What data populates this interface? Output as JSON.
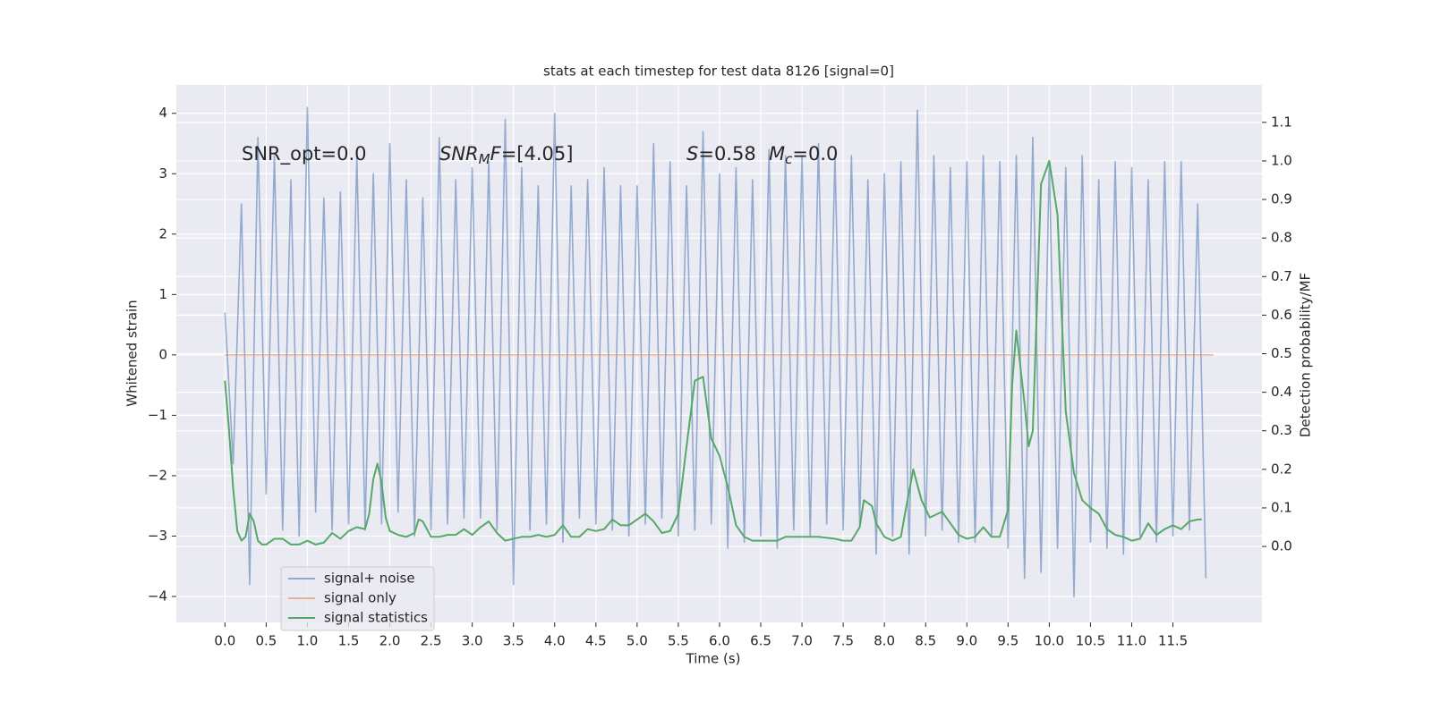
{
  "chart_data": {
    "type": "line",
    "title": "stats at each timestep for test data 8126 [signal=0]",
    "xlabel": "Time (s)",
    "ylabel": "Whitened strain",
    "y2label": "Detection probability/MF",
    "xlim": [
      -0.59,
      12.58
    ],
    "ylim": [
      -4.43,
      4.47
    ],
    "y2lim": [
      -0.197,
      1.197
    ],
    "xticks": [
      {
        "value": 0,
        "label": "0.0"
      },
      {
        "value": 0.5,
        "label": "0.5"
      },
      {
        "value": 1,
        "label": "1.0"
      },
      {
        "value": 1.5,
        "label": "1.5"
      },
      {
        "value": 2,
        "label": "2.0"
      },
      {
        "value": 2.5,
        "label": "2.5"
      },
      {
        "value": 3,
        "label": "3.0"
      },
      {
        "value": 3.5,
        "label": "3.5"
      },
      {
        "value": 4,
        "label": "4.0"
      },
      {
        "value": 4.5,
        "label": "4.5"
      },
      {
        "value": 5,
        "label": "5.0"
      },
      {
        "value": 5.5,
        "label": "5.5"
      },
      {
        "value": 6,
        "label": "6.0"
      },
      {
        "value": 6.5,
        "label": "6.5"
      },
      {
        "value": 7,
        "label": "7.0"
      },
      {
        "value": 7.5,
        "label": "7.5"
      },
      {
        "value": 8,
        "label": "8.0"
      },
      {
        "value": 8.5,
        "label": "8.5"
      },
      {
        "value": 9,
        "label": "9.0"
      },
      {
        "value": 9.5,
        "label": "9.5"
      },
      {
        "value": 10,
        "label": "10.0"
      },
      {
        "value": 10.5,
        "label": "10.5"
      },
      {
        "value": 11,
        "label": "11.0"
      },
      {
        "value": 11.5,
        "label": "11.5"
      }
    ],
    "yticks": [
      {
        "value": -4,
        "label": "−4"
      },
      {
        "value": -3,
        "label": "−3"
      },
      {
        "value": -2,
        "label": "−2"
      },
      {
        "value": -1,
        "label": "−1"
      },
      0,
      1,
      2,
      3,
      4
    ],
    "y2ticks": [
      {
        "value": 0,
        "label": "0.0"
      },
      {
        "value": 0.1,
        "label": "0.1"
      },
      {
        "value": 0.2,
        "label": "0.2"
      },
      {
        "value": 0.3,
        "label": "0.3"
      },
      {
        "value": 0.4,
        "label": "0.4"
      },
      {
        "value": 0.5,
        "label": "0.5"
      },
      {
        "value": 0.6,
        "label": "0.6"
      },
      {
        "value": 0.7,
        "label": "0.7"
      },
      {
        "value": 0.8,
        "label": "0.8"
      },
      {
        "value": 0.9,
        "label": "0.9"
      },
      {
        "value": 1,
        "label": "1.0"
      },
      {
        "value": 1.1,
        "label": "1.1"
      }
    ],
    "grid": true,
    "legend": "lower left",
    "annotations": [
      [
        {
          "text": "SNR_opt=0.0",
          "style": "normal"
        }
      ],
      [
        {
          "text": "SNR",
          "style": "italic"
        },
        {
          "text": "M",
          "style": "sub"
        },
        {
          "text": "F",
          "style": "italic"
        },
        {
          "text": "=[4.05]",
          "style": "normal"
        }
      ],
      [
        {
          "text": "S",
          "style": "italic"
        },
        {
          "text": "=0.58",
          "style": "normal"
        }
      ],
      [
        {
          "text": "M",
          "style": "italic"
        },
        {
          "text": "c",
          "style": "sub"
        },
        {
          "text": "=0.0",
          "style": "normal"
        }
      ]
    ],
    "series": [
      {
        "name": "signal+ noise",
        "color": "#4c72b0",
        "opacity": 0.55,
        "axis": "y",
        "x": [
          0,
          0.1,
          0.2,
          0.3,
          0.4,
          0.5,
          0.6,
          0.7,
          0.8,
          0.9,
          1,
          1.1,
          1.2,
          1.3,
          1.4,
          1.5,
          1.6,
          1.7,
          1.8,
          1.9,
          2,
          2.1,
          2.2,
          2.3,
          2.4,
          2.5,
          2.6,
          2.7,
          2.8,
          2.9,
          3,
          3.1,
          3.2,
          3.3,
          3.4,
          3.5,
          3.6,
          3.7,
          3.8,
          3.9,
          4,
          4.1,
          4.2,
          4.3,
          4.4,
          4.5,
          4.6,
          4.7,
          4.8,
          4.9,
          5,
          5.1,
          5.2,
          5.3,
          5.4,
          5.5,
          5.6,
          5.7,
          5.8,
          5.9,
          6,
          6.1,
          6.2,
          6.3,
          6.4,
          6.5,
          6.6,
          6.7,
          6.8,
          6.9,
          7,
          7.1,
          7.2,
          7.3,
          7.4,
          7.5,
          7.6,
          7.7,
          7.8,
          7.9,
          8,
          8.1,
          8.2,
          8.3,
          8.4,
          8.5,
          8.6,
          8.7,
          8.8,
          8.9,
          9,
          9.1,
          9.2,
          9.3,
          9.4,
          9.5,
          9.6,
          9.7,
          9.8,
          9.9,
          10,
          10.1,
          10.2,
          10.3,
          10.4,
          10.5,
          10.6,
          10.7,
          10.8,
          10.9,
          11,
          11.1,
          11.2,
          11.3,
          11.4,
          11.5,
          11.6,
          11.7,
          11.8,
          11.9
        ],
        "values": [
          0.7,
          -1.8,
          2.5,
          -3.8,
          3.6,
          -2.3,
          3.3,
          -2.9,
          2.9,
          -3.0,
          4.1,
          -2.6,
          2.6,
          -2.9,
          2.7,
          -2.8,
          3.3,
          -2.9,
          3.0,
          -2.8,
          3.5,
          -2.6,
          2.9,
          -3.0,
          2.6,
          -2.9,
          3.6,
          -2.8,
          2.9,
          -2.7,
          3.1,
          -2.7,
          3.2,
          -2.9,
          3.9,
          -3.8,
          3.1,
          -2.9,
          2.8,
          -2.8,
          4.0,
          -3.1,
          2.8,
          -2.7,
          2.9,
          -2.8,
          3.1,
          -2.9,
          2.8,
          -3.0,
          2.8,
          -2.8,
          3.5,
          -2.7,
          3.2,
          -3.0,
          2.8,
          -2.9,
          3.7,
          -2.8,
          3.0,
          -3.2,
          3.1,
          -3.1,
          2.9,
          -3.0,
          3.4,
          -3.2,
          3.3,
          -2.9,
          3.3,
          -3.0,
          3.5,
          -2.8,
          3.3,
          -2.9,
          3.3,
          -2.8,
          2.9,
          -3.3,
          3.0,
          -3.0,
          3.2,
          -3.3,
          4.05,
          -3.0,
          3.3,
          -2.9,
          3.1,
          -3.1,
          3.2,
          -3.1,
          3.3,
          -3.0,
          3.2,
          -3.2,
          3.3,
          -3.7,
          3.6,
          -3.6,
          3.2,
          -3.2,
          3.1,
          -4.0,
          3.3,
          -3.1,
          2.9,
          -3.2,
          3.2,
          -3.3,
          3.1,
          -3.0,
          2.9,
          -3.1,
          3.2,
          -3.0,
          3.2,
          -2.9,
          2.5,
          -3.7
        ]
      },
      {
        "name": "signal only",
        "color": "#dd8452",
        "opacity": 0.55,
        "axis": "y",
        "x": [
          0,
          11.99
        ],
        "values": [
          0,
          0
        ]
      },
      {
        "name": "signal statistics",
        "color": "#55a868",
        "opacity": 1,
        "axis": "y2",
        "x": [
          0,
          0.05,
          0.1,
          0.15,
          0.2,
          0.25,
          0.3,
          0.35,
          0.4,
          0.45,
          0.5,
          0.6,
          0.7,
          0.8,
          0.9,
          1,
          1.1,
          1.2,
          1.3,
          1.4,
          1.5,
          1.6,
          1.7,
          1.75,
          1.8,
          1.85,
          1.9,
          1.95,
          2,
          2.1,
          2.2,
          2.3,
          2.35,
          2.4,
          2.5,
          2.6,
          2.7,
          2.8,
          2.9,
          3,
          3.1,
          3.2,
          3.3,
          3.4,
          3.5,
          3.6,
          3.7,
          3.8,
          3.9,
          4,
          4.1,
          4.2,
          4.3,
          4.4,
          4.5,
          4.6,
          4.7,
          4.8,
          4.9,
          5,
          5.1,
          5.2,
          5.3,
          5.4,
          5.5,
          5.6,
          5.7,
          5.8,
          5.85,
          5.9,
          6,
          6.1,
          6.2,
          6.3,
          6.4,
          6.5,
          6.6,
          6.7,
          6.8,
          6.9,
          7,
          7.2,
          7.4,
          7.5,
          7.6,
          7.7,
          7.75,
          7.85,
          7.9,
          8,
          8.1,
          8.2,
          8.25,
          8.35,
          8.45,
          8.55,
          8.7,
          8.8,
          8.9,
          9,
          9.1,
          9.2,
          9.3,
          9.4,
          9.5,
          9.55,
          9.6,
          9.7,
          9.75,
          9.8,
          9.9,
          10,
          10.1,
          10.2,
          10.3,
          10.4,
          10.5,
          10.6,
          10.7,
          10.8,
          10.9,
          11,
          11.1,
          11.2,
          11.3,
          11.4,
          11.5,
          11.6,
          11.7,
          11.8,
          11.85
        ],
        "values": [
          0.43,
          0.3,
          0.15,
          0.04,
          0.015,
          0.025,
          0.085,
          0.065,
          0.015,
          0.005,
          0.005,
          0.02,
          0.02,
          0.005,
          0.005,
          0.015,
          0.005,
          0.01,
          0.035,
          0.02,
          0.04,
          0.05,
          0.045,
          0.085,
          0.175,
          0.215,
          0.165,
          0.075,
          0.04,
          0.03,
          0.025,
          0.035,
          0.07,
          0.065,
          0.025,
          0.025,
          0.03,
          0.03,
          0.045,
          0.03,
          0.05,
          0.065,
          0.035,
          0.015,
          0.02,
          0.025,
          0.025,
          0.03,
          0.025,
          0.03,
          0.055,
          0.025,
          0.025,
          0.045,
          0.04,
          0.045,
          0.07,
          0.055,
          0.055,
          0.07,
          0.085,
          0.065,
          0.035,
          0.04,
          0.085,
          0.26,
          0.43,
          0.44,
          0.36,
          0.28,
          0.235,
          0.155,
          0.055,
          0.025,
          0.015,
          0.015,
          0.015,
          0.015,
          0.025,
          0.025,
          0.025,
          0.025,
          0.02,
          0.015,
          0.015,
          0.05,
          0.12,
          0.105,
          0.06,
          0.025,
          0.015,
          0.025,
          0.085,
          0.2,
          0.12,
          0.075,
          0.09,
          0.06,
          0.03,
          0.02,
          0.025,
          0.05,
          0.025,
          0.025,
          0.095,
          0.42,
          0.56,
          0.37,
          0.26,
          0.3,
          0.94,
          1.0,
          0.86,
          0.35,
          0.19,
          0.12,
          0.1,
          0.085,
          0.045,
          0.03,
          0.025,
          0.015,
          0.02,
          0.06,
          0.03,
          0.045,
          0.055,
          0.045,
          0.065,
          0.07,
          0.07
        ]
      }
    ]
  }
}
